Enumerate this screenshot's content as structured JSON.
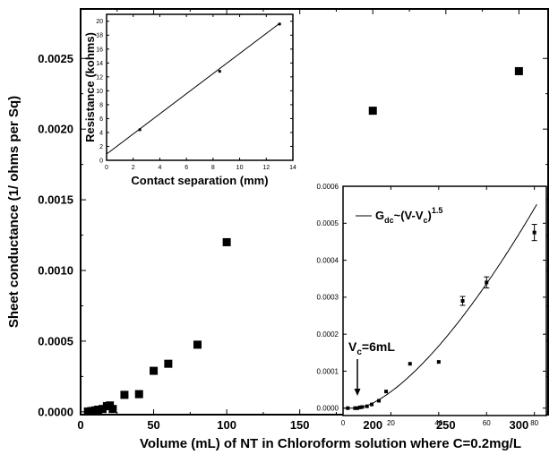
{
  "chart_data": [
    {
      "id": "main",
      "type": "scatter",
      "xlabel": "Volume (mL) of NT in Chloroform solution where C=0.2mg/L",
      "ylabel": "Sheet conductance (1/ ohms per Sq)",
      "xlim": [
        0,
        320
      ],
      "ylim": [
        -2e-05,
        0.00285
      ],
      "xticks": [
        0,
        50,
        100,
        150,
        200,
        250,
        300
      ],
      "xtick_labels": [
        "0",
        "50",
        "100",
        "150",
        "200",
        "250",
        "300"
      ],
      "yticks": [
        0,
        0.0005,
        0.001,
        0.0015,
        0.002,
        0.0025
      ],
      "ytick_labels": [
        "0.0000",
        "0.0005",
        "0.0010",
        "0.0015",
        "0.0020",
        "0.0025"
      ],
      "marker": "square",
      "color": "#000000",
      "points": [
        {
          "x": 5,
          "y": 2e-06
        },
        {
          "x": 7,
          "y": 4e-06
        },
        {
          "x": 8,
          "y": 6e-06
        },
        {
          "x": 10,
          "y": 1e-05
        },
        {
          "x": 12,
          "y": 1.5e-05
        },
        {
          "x": 15,
          "y": 2e-05
        },
        {
          "x": 18,
          "y": 4e-05
        },
        {
          "x": 20,
          "y": 4.5e-05
        },
        {
          "x": 22,
          "y": 2e-05
        },
        {
          "x": 30,
          "y": 0.00012
        },
        {
          "x": 40,
          "y": 0.000125
        },
        {
          "x": 50,
          "y": 0.00029
        },
        {
          "x": 60,
          "y": 0.00034
        },
        {
          "x": 80,
          "y": 0.000475
        },
        {
          "x": 100,
          "y": 0.0012
        },
        {
          "x": 200,
          "y": 0.00213
        },
        {
          "x": 300,
          "y": 0.00241
        }
      ]
    },
    {
      "id": "inset-resistance",
      "type": "line",
      "xlabel": "Contact separation (mm)",
      "ylabel": "Resistance (kohms)",
      "xlim": [
        0,
        14
      ],
      "ylim": [
        0,
        21
      ],
      "xticks": [
        0,
        2,
        4,
        6,
        8,
        10,
        12,
        14
      ],
      "xtick_labels": [
        "0",
        "2",
        "4",
        "6",
        "8",
        "10",
        "12",
        "14"
      ],
      "yticks": [
        0,
        2,
        4,
        6,
        8,
        10,
        12,
        14,
        16,
        18,
        20
      ],
      "ytick_labels": [
        "0",
        "2",
        "4",
        "6",
        "8",
        "10",
        "12",
        "14",
        "16",
        "18",
        "20"
      ],
      "points": [
        {
          "x": 2.5,
          "y": 4.4
        },
        {
          "x": 8.5,
          "y": 12.8
        },
        {
          "x": 13,
          "y": 19.6
        }
      ],
      "fit_line": [
        {
          "x": 0,
          "y": 0.9
        },
        {
          "x": 13,
          "y": 19.7
        }
      ]
    },
    {
      "id": "inset-percolation",
      "type": "scatter",
      "xlim": [
        0,
        85
      ],
      "ylim": [
        -2e-05,
        0.0006
      ],
      "xticks": [
        0,
        20,
        40,
        60,
        80
      ],
      "xtick_labels": [
        "0",
        "20",
        "40",
        "60",
        "80"
      ],
      "yticks": [
        0,
        0.0001,
        0.0002,
        0.0003,
        0.0004,
        0.0005,
        0.0006
      ],
      "ytick_labels": [
        "0.0000",
        "0.0001",
        "0.0002",
        "0.0003",
        "0.0004",
        "0.0005",
        "0.0006"
      ],
      "legend": {
        "entry": "G",
        "sub1": "dc",
        "mid": "~(V-V",
        "sub2": "c",
        "tail": ")",
        "sup": "1.5",
        "placement": "top-left"
      },
      "annotation": {
        "text": "V",
        "sub": "c",
        "tail": "=6mL",
        "arrow_x": 6
      },
      "fit": {
        "vc": 6,
        "exponent": 1.5,
        "x_end": 80,
        "y_end": 0.00054
      },
      "points": [
        {
          "x": 2,
          "y": 0.0
        },
        {
          "x": 5,
          "y": 0.0
        },
        {
          "x": 6,
          "y": 0.0
        },
        {
          "x": 7,
          "y": 2e-06
        },
        {
          "x": 8,
          "y": 3e-06
        },
        {
          "x": 10,
          "y": 5e-06
        },
        {
          "x": 12,
          "y": 1e-05
        },
        {
          "x": 15,
          "y": 2e-05
        },
        {
          "x": 18,
          "y": 4.5e-05
        },
        {
          "x": 28,
          "y": 0.00012
        },
        {
          "x": 40,
          "y": 0.000125
        },
        {
          "x": 50,
          "y": 0.00029,
          "err": 1.2e-05
        },
        {
          "x": 60,
          "y": 0.00034,
          "err": 1.5e-05
        },
        {
          "x": 80,
          "y": 0.000475,
          "err": 2.2e-05
        }
      ]
    }
  ]
}
